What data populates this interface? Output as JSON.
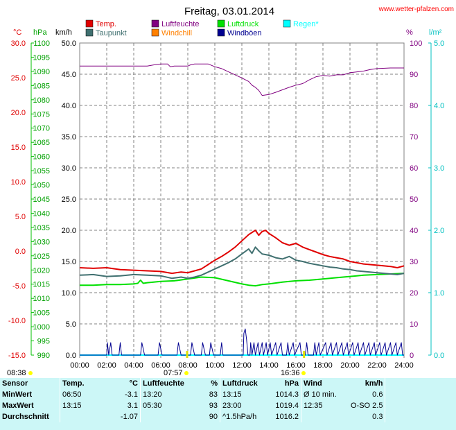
{
  "title": "Freitag, 03.01.2014",
  "site": "www.wetter-pfalzen.com",
  "colors": {
    "temp": "#e00000",
    "humidity": "#800080",
    "pressure": "#00e000",
    "rain": "#00ffff",
    "dew": "#407070",
    "windchill": "#ff8000",
    "gust": "#000090",
    "sun": "#ffff00",
    "grid": "#808080"
  },
  "legend": [
    {
      "label": "Temp.",
      "color": "#e00000"
    },
    {
      "label": "Luftfeuchte",
      "color": "#800080"
    },
    {
      "label": "Luftdruck",
      "color": "#00e000"
    },
    {
      "label": "Regen*",
      "color": "#00ffff"
    },
    {
      "label": "Taupunkt",
      "color": "#407070"
    },
    {
      "label": "Windchill",
      "color": "#ff8000"
    },
    {
      "label": "Windböen",
      "color": "#000090"
    }
  ],
  "axes": {
    "temp": {
      "unit": "°C",
      "color": "#e00000",
      "min": -15,
      "max": 30,
      "ticks": [
        "30.0",
        "25.0",
        "20.0",
        "15.0",
        "10.0",
        "5.0",
        "0.0",
        "-5.0",
        "-10.0",
        "-15.0"
      ]
    },
    "pressure": {
      "unit": "hPa",
      "color": "#00a000",
      "min": 990,
      "max": 1100,
      "ticks": [
        "1100",
        "1095",
        "1090",
        "1085",
        "1080",
        "1075",
        "1070",
        "1065",
        "1060",
        "1055",
        "1050",
        "1045",
        "1040",
        "1035",
        "1030",
        "1025",
        "1020",
        "1015",
        "1010",
        "1005",
        "1000",
        "995",
        "990"
      ]
    },
    "wind": {
      "unit": "km/h",
      "color": "#000000",
      "min": 0,
      "max": 50,
      "ticks": [
        "50.0",
        "45.0",
        "40.0",
        "35.0",
        "30.0",
        "25.0",
        "20.0",
        "15.0",
        "10.0",
        "5.0",
        "0.0"
      ]
    },
    "humidity": {
      "unit": "%",
      "color": "#800080",
      "min": 0,
      "max": 100,
      "ticks": [
        "100",
        "90",
        "80",
        "70",
        "60",
        "50",
        "40",
        "30",
        "20",
        "10",
        "0"
      ]
    },
    "rain": {
      "unit": "l/m²",
      "color": "#00c0c0",
      "min": 0,
      "max": 5,
      "ticks": [
        "5.0",
        "4.0",
        "3.0",
        "2.0",
        "1.0",
        "0.0"
      ]
    },
    "x": {
      "ticks": [
        "00:00",
        "02:00",
        "04:00",
        "06:00",
        "08:00",
        "10:00",
        "12:00",
        "14:00",
        "16:00",
        "18:00",
        "20:00",
        "22:00",
        "24:00"
      ]
    }
  },
  "sun": {
    "rise": "07:57",
    "set": "16:36",
    "left_time": "08:38"
  },
  "chart_data": {
    "type": "line",
    "title": "Freitag, 03.01.2014",
    "x_unit": "hours",
    "series": [
      {
        "name": "Temp.",
        "axis": "wind",
        "color": "#e00000",
        "points": [
          [
            0,
            14.0
          ],
          [
            1,
            13.9
          ],
          [
            2,
            14.0
          ],
          [
            3,
            13.7
          ],
          [
            4,
            13.6
          ],
          [
            5,
            13.5
          ],
          [
            6,
            13.4
          ],
          [
            6.83,
            13.1
          ],
          [
            7.5,
            13.3
          ],
          [
            8,
            13.2
          ],
          [
            8.5,
            13.5
          ],
          [
            9,
            13.8
          ],
          [
            9.5,
            14.5
          ],
          [
            10,
            15.2
          ],
          [
            10.5,
            15.8
          ],
          [
            11,
            16.5
          ],
          [
            11.5,
            17.3
          ],
          [
            12,
            18.3
          ],
          [
            12.5,
            19.3
          ],
          [
            13,
            20.0
          ],
          [
            13.25,
            19.2
          ],
          [
            13.5,
            19.8
          ],
          [
            13.75,
            20.0
          ],
          [
            14,
            19.5
          ],
          [
            14.5,
            18.8
          ],
          [
            15,
            18.0
          ],
          [
            15.5,
            17.6
          ],
          [
            16,
            17.9
          ],
          [
            16.5,
            17.3
          ],
          [
            17,
            16.9
          ],
          [
            17.5,
            16.5
          ],
          [
            18,
            16.1
          ],
          [
            18.5,
            15.8
          ],
          [
            19,
            15.6
          ],
          [
            19.5,
            15.4
          ],
          [
            20,
            15.0
          ],
          [
            20.5,
            14.8
          ],
          [
            21,
            14.6
          ],
          [
            22,
            14.4
          ],
          [
            23,
            14.2
          ],
          [
            23.5,
            14.0
          ],
          [
            24,
            14.3
          ]
        ]
      },
      {
        "name": "Taupunkt",
        "axis": "wind",
        "color": "#407070",
        "points": [
          [
            0,
            12.8
          ],
          [
            1,
            12.9
          ],
          [
            2,
            12.6
          ],
          [
            3,
            12.7
          ],
          [
            4,
            12.9
          ],
          [
            5,
            12.8
          ],
          [
            6,
            12.7
          ],
          [
            6.83,
            12.3
          ],
          [
            7.5,
            12.5
          ],
          [
            8,
            12.3
          ],
          [
            8.5,
            12.5
          ],
          [
            9,
            12.8
          ],
          [
            9.5,
            13.3
          ],
          [
            10,
            13.8
          ],
          [
            10.5,
            14.3
          ],
          [
            11,
            14.8
          ],
          [
            11.5,
            15.4
          ],
          [
            12,
            16.2
          ],
          [
            12.5,
            17.0
          ],
          [
            12.75,
            16.3
          ],
          [
            13,
            17.3
          ],
          [
            13.25,
            16.7
          ],
          [
            13.5,
            16.2
          ],
          [
            14,
            16.0
          ],
          [
            14.5,
            15.6
          ],
          [
            15,
            15.4
          ],
          [
            15.5,
            15.8
          ],
          [
            16,
            15.2
          ],
          [
            16.5,
            15.0
          ],
          [
            17,
            14.7
          ],
          [
            17.5,
            14.5
          ],
          [
            18,
            14.3
          ],
          [
            18.5,
            14.1
          ],
          [
            19,
            14.0
          ],
          [
            19.5,
            13.8
          ],
          [
            20,
            13.7
          ],
          [
            20.5,
            13.5
          ],
          [
            21,
            13.4
          ],
          [
            22,
            13.2
          ],
          [
            23,
            13.0
          ],
          [
            23.5,
            12.9
          ],
          [
            24,
            13.1
          ]
        ]
      },
      {
        "name": "Luftdruck",
        "axis": "wind",
        "color": "#00e000",
        "points": [
          [
            0,
            11.2
          ],
          [
            1,
            11.2
          ],
          [
            2,
            11.3
          ],
          [
            3,
            11.3
          ],
          [
            4,
            11.4
          ],
          [
            4.3,
            11.5
          ],
          [
            4.5,
            12.0
          ],
          [
            4.7,
            11.5
          ],
          [
            5,
            11.6
          ],
          [
            6,
            11.8
          ],
          [
            7,
            11.9
          ],
          [
            8,
            12.2
          ],
          [
            9,
            12.5
          ],
          [
            10,
            12.4
          ],
          [
            11,
            11.9
          ],
          [
            12,
            11.4
          ],
          [
            12.5,
            11.2
          ],
          [
            13,
            11.1
          ],
          [
            13.5,
            11.3
          ],
          [
            14,
            11.4
          ],
          [
            15,
            11.7
          ],
          [
            16,
            11.9
          ],
          [
            17,
            12.0
          ],
          [
            18,
            12.2
          ],
          [
            19,
            12.4
          ],
          [
            19.5,
            12.5
          ],
          [
            20,
            12.6
          ],
          [
            20.5,
            12.7
          ],
          [
            21,
            12.8
          ],
          [
            22,
            12.9
          ],
          [
            23,
            13.0
          ],
          [
            24,
            13.1
          ]
        ]
      },
      {
        "name": "Luftfeuchte",
        "axis": "humidity",
        "color": "#800080",
        "points": [
          [
            0,
            92.6
          ],
          [
            2,
            92.6
          ],
          [
            4,
            92.6
          ],
          [
            5,
            92.6
          ],
          [
            5.5,
            93.0
          ],
          [
            6,
            93.3
          ],
          [
            6.5,
            93.3
          ],
          [
            6.7,
            92.4
          ],
          [
            7,
            92.6
          ],
          [
            8,
            92.6
          ],
          [
            8.2,
            93.0
          ],
          [
            8.5,
            93.3
          ],
          [
            9.5,
            93.3
          ],
          [
            10,
            92.4
          ],
          [
            10.5,
            91.8
          ],
          [
            11,
            90.8
          ],
          [
            11.5,
            89.8
          ],
          [
            12,
            88.8
          ],
          [
            12.5,
            87.7
          ],
          [
            12.75,
            86.5
          ],
          [
            13,
            85.8
          ],
          [
            13.25,
            84.8
          ],
          [
            13.5,
            83.2
          ],
          [
            14,
            83.5
          ],
          [
            14.5,
            84.2
          ],
          [
            15,
            85.0
          ],
          [
            15.5,
            85.8
          ],
          [
            16,
            86.5
          ],
          [
            16.5,
            87.0
          ],
          [
            17,
            88.2
          ],
          [
            17.5,
            89.2
          ],
          [
            18,
            89.6
          ],
          [
            18.5,
            89.4
          ],
          [
            19,
            89.8
          ],
          [
            19.5,
            89.8
          ],
          [
            20,
            90.5
          ],
          [
            21,
            91.0
          ],
          [
            21.5,
            91.5
          ],
          [
            22,
            91.8
          ],
          [
            23,
            92.0
          ],
          [
            24,
            92.0
          ]
        ]
      },
      {
        "name": "Windböen",
        "axis": "wind",
        "color": "#000090",
        "points": [
          [
            0,
            0
          ],
          [
            2,
            0
          ],
          [
            2.05,
            2
          ],
          [
            2.15,
            0
          ],
          [
            2.3,
            2
          ],
          [
            2.4,
            0
          ],
          [
            2.9,
            0
          ],
          [
            3,
            2
          ],
          [
            3.1,
            0
          ],
          [
            4.5,
            0
          ],
          [
            4.6,
            2
          ],
          [
            4.8,
            0
          ],
          [
            5.8,
            0
          ],
          [
            5.9,
            2
          ],
          [
            6.1,
            0
          ],
          [
            7.2,
            0
          ],
          [
            7.3,
            2
          ],
          [
            7.5,
            0
          ],
          [
            8.2,
            0
          ],
          [
            8.3,
            2
          ],
          [
            8.5,
            0
          ],
          [
            9,
            0
          ],
          [
            9.1,
            2
          ],
          [
            9.3,
            0
          ],
          [
            9.6,
            0
          ],
          [
            9.7,
            2
          ],
          [
            9.9,
            0
          ],
          [
            10.4,
            0
          ],
          [
            10.5,
            2
          ],
          [
            10.6,
            0
          ],
          [
            12.1,
            0
          ],
          [
            12.15,
            3.5
          ],
          [
            12.25,
            4.2
          ],
          [
            12.35,
            2.5
          ],
          [
            12.45,
            0
          ],
          [
            12.6,
            0
          ],
          [
            12.65,
            2
          ],
          [
            12.75,
            0
          ],
          [
            12.9,
            2
          ],
          [
            13,
            0
          ],
          [
            13.2,
            2
          ],
          [
            13.3,
            0
          ],
          [
            13.5,
            2
          ],
          [
            13.6,
            0
          ],
          [
            13.8,
            2
          ],
          [
            13.9,
            0
          ],
          [
            14.1,
            2
          ],
          [
            14.2,
            0
          ],
          [
            14.5,
            2
          ],
          [
            14.6,
            0
          ],
          [
            14.9,
            2
          ],
          [
            15,
            0
          ],
          [
            15.3,
            0
          ],
          [
            15.4,
            2
          ],
          [
            15.5,
            0
          ],
          [
            15.8,
            2
          ],
          [
            15.9,
            0
          ],
          [
            16.3,
            2
          ],
          [
            16.4,
            0
          ],
          [
            16.7,
            0
          ],
          [
            16.8,
            2
          ],
          [
            16.9,
            0
          ],
          [
            17.3,
            0
          ],
          [
            17.4,
            2
          ],
          [
            17.5,
            0
          ],
          [
            17.7,
            2
          ],
          [
            17.8,
            0
          ],
          [
            18.2,
            2
          ],
          [
            18.3,
            0
          ],
          [
            18.6,
            2
          ],
          [
            18.7,
            0
          ],
          [
            19,
            2
          ],
          [
            19.1,
            0
          ],
          [
            19.4,
            2
          ],
          [
            19.5,
            0
          ],
          [
            19.8,
            2
          ],
          [
            19.9,
            0
          ],
          [
            20.2,
            2
          ],
          [
            20.3,
            0
          ],
          [
            20.6,
            2
          ],
          [
            20.7,
            0
          ],
          [
            21,
            2
          ],
          [
            21.1,
            0
          ],
          [
            21.4,
            2
          ],
          [
            21.5,
            0
          ],
          [
            21.8,
            2
          ],
          [
            21.9,
            0
          ],
          [
            22.2,
            2
          ],
          [
            22.3,
            0
          ],
          [
            22.6,
            2
          ],
          [
            22.7,
            0
          ],
          [
            23,
            2
          ],
          [
            23.1,
            0
          ],
          [
            23.4,
            2
          ],
          [
            23.5,
            0
          ],
          [
            23.8,
            2
          ],
          [
            23.9,
            0
          ],
          [
            24,
            0
          ]
        ]
      },
      {
        "name": "Regen*",
        "axis": "rain",
        "color": "#00ffff",
        "points": [
          [
            0,
            0
          ],
          [
            24,
            0
          ]
        ]
      }
    ]
  },
  "stats": {
    "headers": [
      "Sensor",
      "Temp.",
      "°C",
      "Luftfeuchte",
      "%",
      "Luftdruck",
      "hPa",
      "Wind",
      "km/h"
    ],
    "rows": [
      [
        "MinWert",
        "06:50",
        "-3.1",
        "13:20",
        "83",
        "13:15",
        "1014.3",
        "Ø 10 min.",
        "0.6"
      ],
      [
        "MaxWert",
        "13:15",
        "3.1",
        "05:30",
        "93",
        "23:00",
        "1019.4",
        "12:35",
        "O-SO 2.5"
      ],
      [
        "Durchschnitt",
        "",
        "-1.07",
        "",
        "90",
        "^1.5hPa/h",
        "1016.2",
        "",
        "0.3"
      ]
    ]
  }
}
